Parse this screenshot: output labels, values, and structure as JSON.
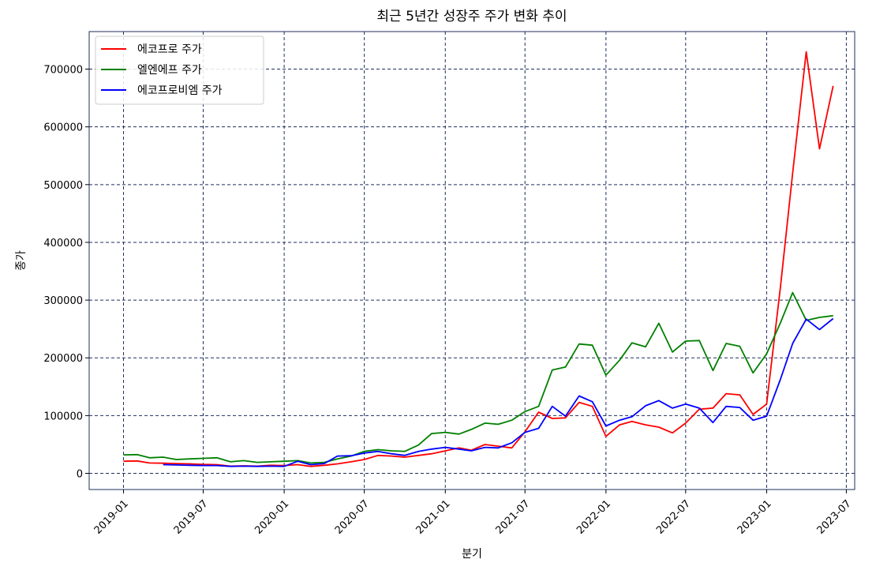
{
  "chart_data": {
    "type": "line",
    "title": "최근 5년간 성장주 주가 변화 추이",
    "xlabel": "분기",
    "ylabel": "종가",
    "x_ticks": [
      "2019-01",
      "2019-07",
      "2020-01",
      "2020-07",
      "2021-01",
      "2021-07",
      "2022-01",
      "2022-07",
      "2023-01",
      "2023-07"
    ],
    "y_ticks": [
      "0",
      "100000",
      "200000",
      "300000",
      "400000",
      "500000",
      "600000",
      "700000"
    ],
    "xlim": [
      "2018-10-15",
      "2023-07-20"
    ],
    "ylim": [
      -28000,
      765000
    ],
    "grid": true,
    "legend_position": "top-left",
    "series": [
      {
        "name": "에코프로 주가",
        "color": "#ff0000",
        "points": [
          [
            "2019-01-01",
            21000
          ],
          [
            "2019-02-01",
            21500
          ],
          [
            "2019-03-01",
            18000
          ],
          [
            "2019-04-01",
            17500
          ],
          [
            "2019-05-01",
            17000
          ],
          [
            "2019-06-01",
            16500
          ],
          [
            "2019-07-01",
            15500
          ],
          [
            "2019-08-01",
            15000
          ],
          [
            "2019-09-01",
            12500
          ],
          [
            "2019-10-01",
            13000
          ],
          [
            "2019-11-01",
            12500
          ],
          [
            "2019-12-01",
            14000
          ],
          [
            "2020-01-01",
            13500
          ],
          [
            "2020-02-01",
            15000
          ],
          [
            "2020-03-01",
            12000
          ],
          [
            "2020-04-01",
            14000
          ],
          [
            "2020-05-01",
            16500
          ],
          [
            "2020-06-01",
            20000
          ],
          [
            "2020-07-01",
            24000
          ],
          [
            "2020-08-01",
            31000
          ],
          [
            "2020-09-01",
            30000
          ],
          [
            "2020-10-01",
            28000
          ],
          [
            "2020-11-01",
            31000
          ],
          [
            "2020-12-01",
            34000
          ],
          [
            "2021-01-01",
            39000
          ],
          [
            "2021-02-01",
            44000
          ],
          [
            "2021-03-01",
            40000
          ],
          [
            "2021-04-01",
            50000
          ],
          [
            "2021-05-01",
            47000
          ],
          [
            "2021-06-01",
            44000
          ],
          [
            "2021-07-01",
            72000
          ],
          [
            "2021-08-01",
            106000
          ],
          [
            "2021-09-01",
            95000
          ],
          [
            "2021-10-01",
            96000
          ],
          [
            "2021-11-01",
            123000
          ],
          [
            "2021-12-01",
            116000
          ],
          [
            "2022-01-01",
            64000
          ],
          [
            "2022-02-01",
            84000
          ],
          [
            "2022-03-01",
            90000
          ],
          [
            "2022-04-01",
            84000
          ],
          [
            "2022-05-01",
            80000
          ],
          [
            "2022-06-01",
            70000
          ],
          [
            "2022-07-01",
            87000
          ],
          [
            "2022-08-01",
            111000
          ],
          [
            "2022-09-01",
            113000
          ],
          [
            "2022-10-01",
            138000
          ],
          [
            "2022-11-01",
            136000
          ],
          [
            "2022-12-01",
            102000
          ],
          [
            "2023-01-01",
            120000
          ],
          [
            "2023-02-01",
            320000
          ],
          [
            "2023-03-01",
            520000
          ],
          [
            "2023-04-01",
            730000
          ],
          [
            "2023-05-01",
            562000
          ],
          [
            "2023-06-01",
            671000
          ]
        ]
      },
      {
        "name": "엘엔에프 주가",
        "color": "#008000",
        "points": [
          [
            "2019-01-01",
            32000
          ],
          [
            "2019-02-01",
            32500
          ],
          [
            "2019-03-01",
            27000
          ],
          [
            "2019-04-01",
            28000
          ],
          [
            "2019-05-01",
            24000
          ],
          [
            "2019-06-01",
            25000
          ],
          [
            "2019-07-01",
            26000
          ],
          [
            "2019-08-01",
            27000
          ],
          [
            "2019-09-01",
            20000
          ],
          [
            "2019-10-01",
            22000
          ],
          [
            "2019-11-01",
            19000
          ],
          [
            "2019-12-01",
            20000
          ],
          [
            "2020-01-01",
            21000
          ],
          [
            "2020-02-01",
            22000
          ],
          [
            "2020-03-01",
            18000
          ],
          [
            "2020-04-01",
            19000
          ],
          [
            "2020-05-01",
            25000
          ],
          [
            "2020-06-01",
            30000
          ],
          [
            "2020-07-01",
            38000
          ],
          [
            "2020-08-01",
            41000
          ],
          [
            "2020-09-01",
            39000
          ],
          [
            "2020-10-01",
            38000
          ],
          [
            "2020-11-01",
            49000
          ],
          [
            "2020-12-01",
            69000
          ],
          [
            "2021-01-01",
            71000
          ],
          [
            "2021-02-01",
            68000
          ],
          [
            "2021-03-01",
            76000
          ],
          [
            "2021-04-01",
            87000
          ],
          [
            "2021-05-01",
            85000
          ],
          [
            "2021-06-01",
            92000
          ],
          [
            "2021-07-01",
            107000
          ],
          [
            "2021-08-01",
            116000
          ],
          [
            "2021-09-01",
            179000
          ],
          [
            "2021-10-01",
            184000
          ],
          [
            "2021-11-01",
            224000
          ],
          [
            "2021-12-01",
            222000
          ],
          [
            "2022-01-01",
            170000
          ],
          [
            "2022-02-01",
            196000
          ],
          [
            "2022-03-01",
            226000
          ],
          [
            "2022-04-01",
            219000
          ],
          [
            "2022-05-01",
            260000
          ],
          [
            "2022-06-01",
            210000
          ],
          [
            "2022-07-01",
            229000
          ],
          [
            "2022-08-01",
            230000
          ],
          [
            "2022-09-01",
            178000
          ],
          [
            "2022-10-01",
            225000
          ],
          [
            "2022-11-01",
            220000
          ],
          [
            "2022-12-01",
            174000
          ],
          [
            "2023-01-01",
            207000
          ],
          [
            "2023-02-01",
            260000
          ],
          [
            "2023-03-01",
            313000
          ],
          [
            "2023-04-01",
            265000
          ],
          [
            "2023-05-01",
            270000
          ],
          [
            "2023-06-01",
            273000
          ]
        ]
      },
      {
        "name": "에코프로비엠 주가",
        "color": "#0000ff",
        "points": [
          [
            "2019-04-01",
            15000
          ],
          [
            "2019-05-01",
            14500
          ],
          [
            "2019-06-01",
            14000
          ],
          [
            "2019-07-01",
            13500
          ],
          [
            "2019-08-01",
            13500
          ],
          [
            "2019-09-01",
            12000
          ],
          [
            "2019-10-01",
            12500
          ],
          [
            "2019-11-01",
            12000
          ],
          [
            "2019-12-01",
            12500
          ],
          [
            "2020-01-01",
            12000
          ],
          [
            "2020-02-01",
            21000
          ],
          [
            "2020-03-01",
            15000
          ],
          [
            "2020-04-01",
            17000
          ],
          [
            "2020-05-01",
            30000
          ],
          [
            "2020-06-01",
            30500
          ],
          [
            "2020-07-01",
            35000
          ],
          [
            "2020-08-01",
            38000
          ],
          [
            "2020-09-01",
            34000
          ],
          [
            "2020-10-01",
            31000
          ],
          [
            "2020-11-01",
            38000
          ],
          [
            "2020-12-01",
            42000
          ],
          [
            "2021-01-01",
            45000
          ],
          [
            "2021-02-01",
            42000
          ],
          [
            "2021-03-01",
            39000
          ],
          [
            "2021-04-01",
            45000
          ],
          [
            "2021-05-01",
            44000
          ],
          [
            "2021-06-01",
            53000
          ],
          [
            "2021-07-01",
            71000
          ],
          [
            "2021-08-01",
            78000
          ],
          [
            "2021-09-01",
            116000
          ],
          [
            "2021-10-01",
            99000
          ],
          [
            "2021-11-01",
            134000
          ],
          [
            "2021-12-01",
            124000
          ],
          [
            "2022-01-01",
            82000
          ],
          [
            "2022-02-01",
            92000
          ],
          [
            "2022-03-01",
            98000
          ],
          [
            "2022-04-01",
            117000
          ],
          [
            "2022-05-01",
            126000
          ],
          [
            "2022-06-01",
            113000
          ],
          [
            "2022-07-01",
            120000
          ],
          [
            "2022-08-01",
            113000
          ],
          [
            "2022-09-01",
            88000
          ],
          [
            "2022-10-01",
            116000
          ],
          [
            "2022-11-01",
            114000
          ],
          [
            "2022-12-01",
            92000
          ],
          [
            "2023-01-01",
            99000
          ],
          [
            "2023-02-01",
            162000
          ],
          [
            "2023-03-01",
            225000
          ],
          [
            "2023-04-01",
            267000
          ],
          [
            "2023-05-01",
            249000
          ],
          [
            "2023-06-01",
            268000
          ]
        ]
      }
    ]
  }
}
